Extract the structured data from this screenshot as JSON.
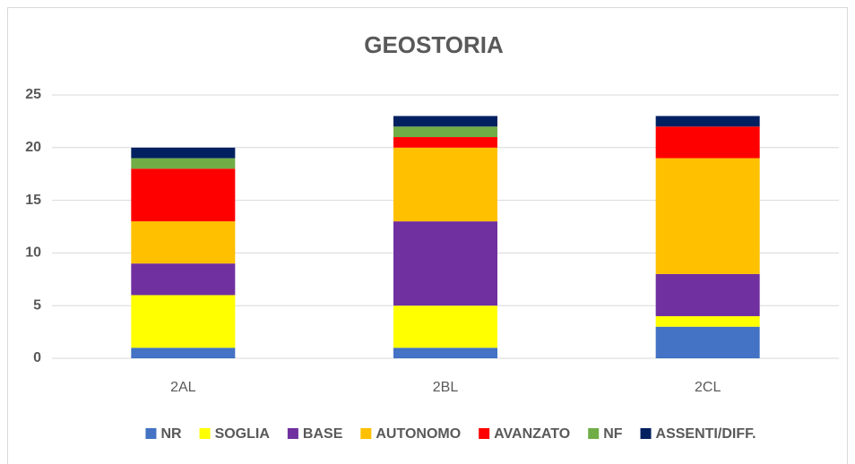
{
  "chart_data": {
    "type": "stacked_bar",
    "title": "GEOSTORIA",
    "categories": [
      "2AL",
      "2BL",
      "2CL"
    ],
    "series": [
      {
        "name": "NR",
        "color": "#4472c4",
        "values": [
          1,
          1,
          3
        ]
      },
      {
        "name": "SOGLIA",
        "color": "#ffff00",
        "values": [
          5,
          4,
          1
        ]
      },
      {
        "name": "BASE",
        "color": "#7030a0",
        "values": [
          3,
          8,
          4
        ]
      },
      {
        "name": "AUTONOMO",
        "color": "#ffc000",
        "values": [
          4,
          7,
          11
        ]
      },
      {
        "name": "AVANZATO",
        "color": "#ff0000",
        "values": [
          5,
          1,
          3
        ]
      },
      {
        "name": "NF",
        "color": "#70ad47",
        "values": [
          1,
          1,
          0
        ]
      },
      {
        "name": "ASSENTI/DIFF.",
        "color": "#002060",
        "values": [
          1,
          1,
          1
        ]
      }
    ],
    "ylim": [
      0,
      25
    ],
    "yticks": [
      0,
      5,
      10,
      15,
      20,
      25
    ],
    "grid": true,
    "legend": "bottom"
  }
}
